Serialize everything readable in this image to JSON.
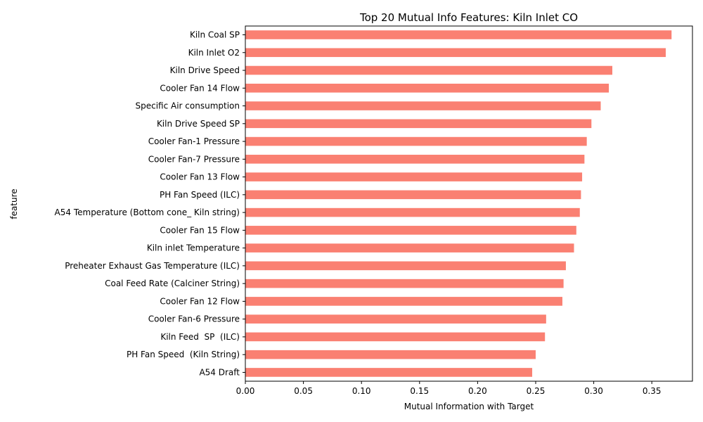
{
  "chart_data": {
    "type": "bar",
    "orientation": "horizontal",
    "title": "Top 20 Mutual Info Features: Kiln Inlet CO",
    "xlabel": "Mutual Information with Target",
    "ylabel": "feature",
    "xlim": [
      0,
      0.385
    ],
    "x_ticks": [
      0.0,
      0.05,
      0.1,
      0.15,
      0.2,
      0.25,
      0.3,
      0.35
    ],
    "x_tick_labels": [
      "0.00",
      "0.05",
      "0.10",
      "0.15",
      "0.20",
      "0.25",
      "0.30",
      "0.35"
    ],
    "grid": false,
    "bar_color": "#fa8072",
    "categories": [
      "Kiln Coal SP",
      "Kiln Inlet O2",
      "Kiln Drive Speed",
      "Cooler Fan 14 Flow",
      "Specific Air consumption",
      "Kiln Drive Speed SP",
      "Cooler Fan-1 Pressure",
      "Cooler Fan-7 Pressure",
      "Cooler Fan 13 Flow",
      "PH Fan Speed (ILC)",
      "A54 Temperature (Bottom cone_ Kiln string)",
      "Cooler Fan 15 Flow",
      "Kiln inlet Temperature",
      "Preheater Exhaust Gas Temperature (ILC)",
      "Coal Feed Rate (Calciner String)",
      "Cooler Fan 12 Flow",
      "Cooler Fan-6 Pressure",
      "Kiln Feed  SP  (ILC)",
      "PH Fan Speed  (Kiln String)",
      "A54 Draft"
    ],
    "values": [
      0.367,
      0.362,
      0.316,
      0.313,
      0.306,
      0.298,
      0.294,
      0.292,
      0.29,
      0.289,
      0.288,
      0.285,
      0.283,
      0.276,
      0.274,
      0.273,
      0.259,
      0.258,
      0.25,
      0.247
    ]
  }
}
